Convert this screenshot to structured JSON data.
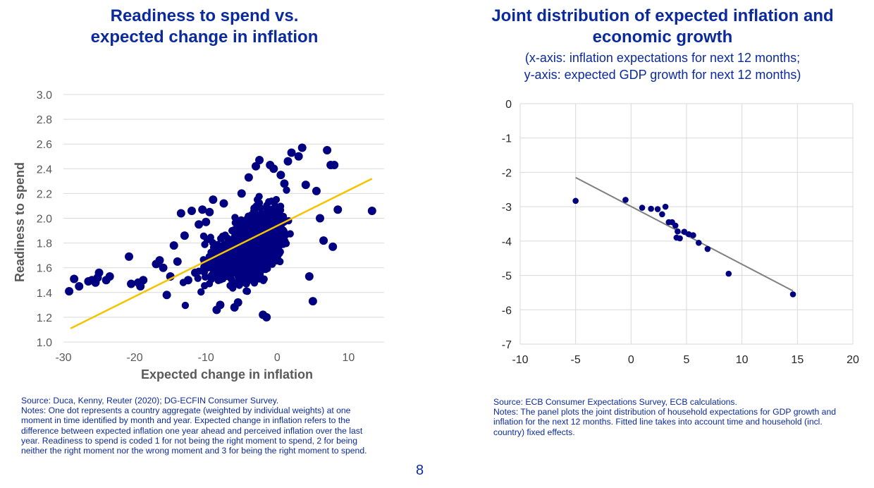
{
  "left": {
    "title_line1": "Readiness to spend vs.",
    "title_line2": "expected change in inflation",
    "source": "Source: Duca, Kenny, Reuter (2020); DG-ECFIN Consumer Survey.",
    "notes_lines": [
      "Notes: One dot represents a country aggregate (weighted by individual weights) at one",
      "moment in time identified by month and year. Expected change in inflation refers to the",
      "difference between expected inflation one year ahead and perceived inflation over the last",
      "year. Readiness to spend is coded 1 for not being the right moment to spend, 2 for being",
      "neither the right moment nor the wrong moment and 3 for being the right moment to spend."
    ]
  },
  "right": {
    "title_line1": "Joint distribution of expected inflation and",
    "title_line2": "economic growth",
    "subtitle_line1": "(x-axis: inflation expectations for next 12 months;",
    "subtitle_line2": "y-axis: expected GDP growth for next 12 months)",
    "source": "Source: ECB Consumer Expectations Survey, ECB calculations.",
    "notes_lines": [
      "Notes: The panel plots the joint distribution of household expectations for GDP growth and",
      "inflation for the next 12 months. Fitted line takes into account time and household (incl.",
      "country) fixed effects."
    ]
  },
  "page_number": "8",
  "colors": {
    "title": "#0b2a9b",
    "dots": "#000080",
    "fit_left": "#f5c400",
    "fit_right": "#7f7f7f",
    "grid": "#d9d9d9"
  },
  "chart_data": [
    {
      "type": "scatter",
      "title": "Readiness to spend vs. expected change in inflation",
      "xlabel": "Expected change in inflation",
      "ylabel": "Readiness to spend",
      "xlim": [
        -30,
        15
      ],
      "ylim": [
        1.0,
        3.0
      ],
      "xticks": [
        -30,
        -20,
        -10,
        0,
        10
      ],
      "yticks": [
        1.0,
        1.2,
        1.4,
        1.6,
        1.8,
        2.0,
        2.2,
        2.4,
        2.6,
        2.8,
        3.0
      ],
      "grid": "horizontal",
      "fit_line": [
        [
          -29,
          1.11
        ],
        [
          13.3,
          2.32
        ]
      ],
      "cloud_note": "dense cluster of several thousand points between x -12 and 5",
      "points": [
        [
          -29.2,
          1.41
        ],
        [
          -28.5,
          1.51
        ],
        [
          -27.8,
          1.45
        ],
        [
          -26.5,
          1.49
        ],
        [
          -26.0,
          1.5
        ],
        [
          -25.5,
          1.48
        ],
        [
          -25.2,
          1.52
        ],
        [
          -25.0,
          1.56
        ],
        [
          -24.0,
          1.5
        ],
        [
          -23.5,
          1.53
        ],
        [
          -20.8,
          1.69
        ],
        [
          -20.5,
          1.47
        ],
        [
          -19.5,
          1.48
        ],
        [
          -19.2,
          1.45
        ],
        [
          -18.8,
          1.5
        ],
        [
          -17.0,
          1.63
        ],
        [
          -16.5,
          1.66
        ],
        [
          -16.0,
          1.6
        ],
        [
          -15.5,
          1.38
        ],
        [
          -15.0,
          1.53
        ],
        [
          -14.5,
          1.78
        ],
        [
          -14.0,
          1.65
        ],
        [
          -13.5,
          2.04
        ],
        [
          -13.0,
          1.86
        ],
        [
          -12.5,
          1.5
        ],
        [
          -12.0,
          2.06
        ],
        [
          -11.5,
          1.56
        ],
        [
          -11.0,
          1.95
        ],
        [
          -10.5,
          2.07
        ],
        [
          -10.0,
          1.97
        ],
        [
          -9.5,
          2.05
        ],
        [
          -9.0,
          2.15
        ],
        [
          -8.5,
          1.26
        ],
        [
          -8.0,
          1.3
        ],
        [
          -7.5,
          2.12
        ],
        [
          -6.0,
          1.28
        ],
        [
          -5.5,
          1.32
        ],
        [
          -5.0,
          2.2
        ],
        [
          -4.0,
          2.33
        ],
        [
          -3.0,
          2.42
        ],
        [
          -2.5,
          2.47
        ],
        [
          -2.0,
          1.22
        ],
        [
          -1.5,
          1.2
        ],
        [
          -1.0,
          2.43
        ],
        [
          -0.5,
          2.4
        ],
        [
          0.5,
          2.35
        ],
        [
          1.0,
          2.28
        ],
        [
          1.5,
          2.46
        ],
        [
          2.0,
          2.53
        ],
        [
          3.0,
          2.5
        ],
        [
          3.5,
          2.57
        ],
        [
          4.0,
          2.27
        ],
        [
          4.5,
          1.53
        ],
        [
          5.0,
          1.33
        ],
        [
          5.5,
          2.22
        ],
        [
          6.0,
          2.0
        ],
        [
          6.5,
          1.82
        ],
        [
          7.0,
          2.55
        ],
        [
          7.5,
          2.43
        ],
        [
          8.0,
          2.43
        ],
        [
          8.5,
          2.07
        ],
        [
          7.8,
          1.77
        ],
        [
          13.3,
          2.06
        ]
      ]
    },
    {
      "type": "scatter",
      "title": "Joint distribution of expected inflation and economic growth",
      "xlabel": "",
      "ylabel": "",
      "xlim": [
        -10,
        20
      ],
      "ylim": [
        -7,
        0
      ],
      "xticks": [
        -10,
        -5,
        0,
        5,
        10,
        15,
        20
      ],
      "yticks": [
        0,
        -1,
        -2,
        -3,
        -4,
        -5,
        -6,
        -7
      ],
      "grid": "both",
      "fit_line": [
        [
          -5,
          -2.15
        ],
        [
          14.6,
          -5.45
        ]
      ],
      "points": [
        [
          -5.0,
          -2.83
        ],
        [
          -0.5,
          -2.8
        ],
        [
          1.0,
          -3.03
        ],
        [
          1.8,
          -3.06
        ],
        [
          2.4,
          -3.07
        ],
        [
          2.8,
          -3.22
        ],
        [
          3.1,
          -3.0
        ],
        [
          3.4,
          -3.45
        ],
        [
          3.7,
          -3.45
        ],
        [
          4.0,
          -3.55
        ],
        [
          4.2,
          -3.72
        ],
        [
          4.1,
          -3.9
        ],
        [
          4.4,
          -3.92
        ],
        [
          4.8,
          -3.73
        ],
        [
          5.2,
          -3.8
        ],
        [
          5.6,
          -3.83
        ],
        [
          6.1,
          -4.05
        ],
        [
          6.9,
          -4.23
        ],
        [
          8.8,
          -4.95
        ],
        [
          14.6,
          -5.55
        ]
      ]
    }
  ]
}
